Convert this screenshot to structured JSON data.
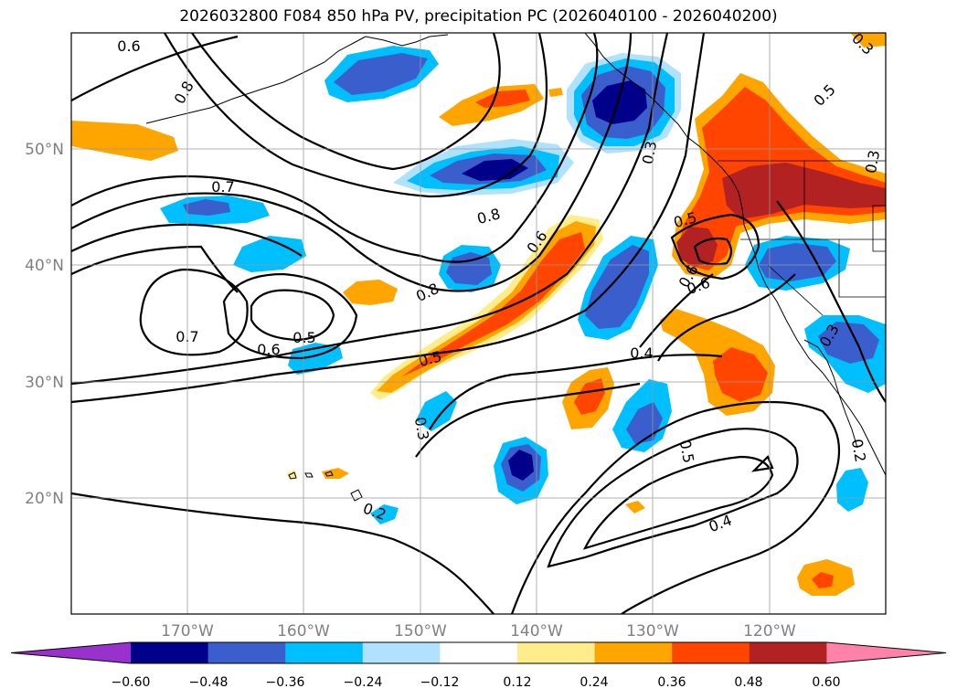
{
  "title": "2026032800 F084 850 hPa PV, precipitation PC (2026040100 - 2026040200)",
  "map": {
    "lon_range": [
      -180,
      -110
    ],
    "lat_range": [
      10,
      60
    ],
    "lon_ticks": [
      "170°W",
      "160°W",
      "150°W",
      "140°W",
      "130°W",
      "120°W"
    ],
    "lat_ticks": [
      "50°N",
      "40°N",
      "30°N",
      "20°N"
    ],
    "contour_labels": [
      "0.6",
      "0.8",
      "0.7",
      "0.7",
      "0.6",
      "0.5",
      "0.8",
      "0.8",
      "0.6",
      "0.5",
      "0.3",
      "0.5",
      "0.6",
      "0.6",
      "0.4",
      "0.5",
      "0.4",
      "0.3",
      "0.2",
      "0.3",
      "0.2",
      "0.3",
      "0.5",
      "0.3"
    ]
  },
  "colorbar": {
    "ticks": [
      "−0.60",
      "−0.48",
      "−0.36",
      "−0.24",
      "−0.12",
      "0.12",
      "0.24",
      "0.36",
      "0.48",
      "0.60"
    ],
    "colors": [
      "#9932CC",
      "#00008B",
      "#3A5FCD",
      "#00BFFF",
      "#B0E2FF",
      "#FFFFFF",
      "#FFEC8B",
      "#FFA500",
      "#FF4500",
      "#B22222",
      "#FF82AB"
    ]
  }
}
